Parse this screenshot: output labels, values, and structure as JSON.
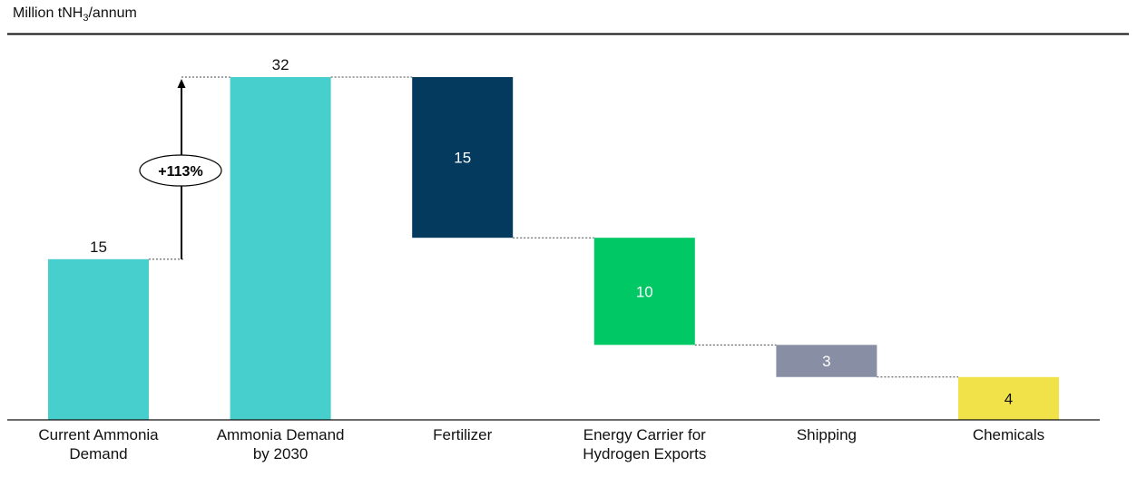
{
  "chart_data": {
    "type": "bar",
    "subtype": "waterfall",
    "ylabel": {
      "prefix": "Million tNH",
      "subscript": "3",
      "suffix": "/annum"
    },
    "categories": [
      [
        "Current Ammonia",
        "Demand"
      ],
      [
        "Ammonia Demand",
        "by 2030"
      ],
      [
        "Fertilizer"
      ],
      [
        "Energy Carrier for",
        "Hydrogen Exports"
      ],
      [
        "Shipping"
      ],
      [
        "Chemicals"
      ]
    ],
    "values": [
      15,
      32,
      15,
      10,
      3,
      4
    ],
    "value_labels": [
      "15",
      "32",
      "15",
      "10",
      "3",
      "4"
    ],
    "bar_kind": [
      "total",
      "total",
      "segment",
      "segment",
      "segment",
      "segment"
    ],
    "ylim": [
      0,
      32
    ],
    "grid": false,
    "annotation": {
      "text": "+113%"
    },
    "colors": [
      "#46cfcc",
      "#46cfcc",
      "#033a5e",
      "#00c864",
      "#888ea3",
      "#f2e24a"
    ],
    "label_colors": [
      "#111111",
      "#111111",
      "#ffffff",
      "#ffffff",
      "#ffffff",
      "#111111"
    ]
  }
}
